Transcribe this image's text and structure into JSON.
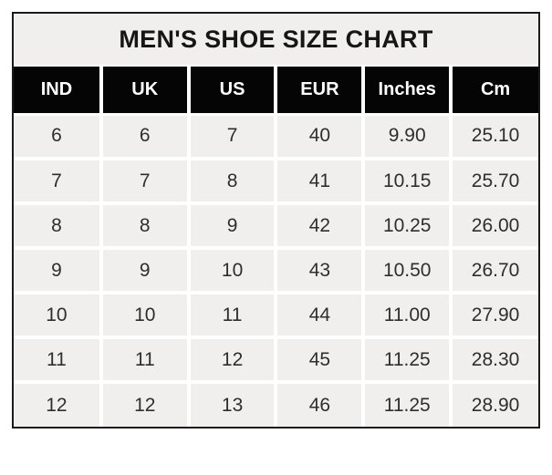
{
  "title": "MEN'S SHOE SIZE CHART",
  "colors": {
    "border": "#1a1a1a",
    "title_bg": "#f0efed",
    "title_text": "#161616",
    "header_bg": "#050505",
    "header_text": "#ffffff",
    "cell_bg": "#f0efed",
    "grid_line": "#ffffff",
    "text": "#2e2e2e"
  },
  "chart_data": {
    "type": "table",
    "title": "MEN'S SHOE SIZE CHART",
    "columns": [
      "IND",
      "UK",
      "US",
      "EUR",
      "Inches",
      "Cm"
    ],
    "rows": [
      [
        "6",
        "6",
        "7",
        "40",
        "9.90",
        "25.10"
      ],
      [
        "7",
        "7",
        "8",
        "41",
        "10.15",
        "25.70"
      ],
      [
        "8",
        "8",
        "9",
        "42",
        "10.25",
        "26.00"
      ],
      [
        "9",
        "9",
        "10",
        "43",
        "10.50",
        "26.70"
      ],
      [
        "10",
        "10",
        "11",
        "44",
        "11.00",
        "27.90"
      ],
      [
        "11",
        "11",
        "12",
        "45",
        "11.25",
        "28.30"
      ],
      [
        "12",
        "12",
        "13",
        "46",
        "11.25",
        "28.90"
      ]
    ]
  }
}
